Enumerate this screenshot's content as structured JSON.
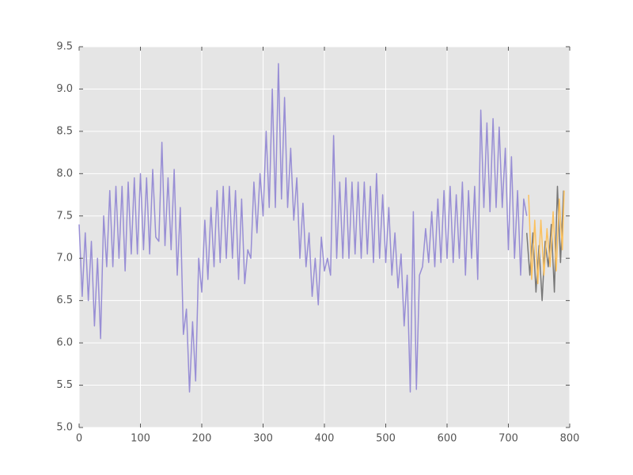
{
  "chart_data": {
    "type": "line",
    "xlim": [
      0,
      800
    ],
    "ylim": [
      5,
      9.5
    ],
    "xticks": [
      0,
      100,
      200,
      300,
      400,
      500,
      600,
      700,
      800
    ],
    "yticks": [
      {
        "value": 5,
        "label": "5.0"
      },
      {
        "value": 5.5,
        "label": "5.5"
      },
      {
        "value": 6,
        "label": "6.0"
      },
      {
        "value": 6.5,
        "label": "6.5"
      },
      {
        "value": 7,
        "label": "7.0"
      },
      {
        "value": 7.5,
        "label": "7.5"
      },
      {
        "value": 8,
        "label": "8.0"
      },
      {
        "value": 8.5,
        "label": "8.5"
      },
      {
        "value": 9,
        "label": "9.0"
      },
      {
        "value": 9.5,
        "label": "9.5"
      }
    ],
    "grid": true,
    "series": [
      {
        "color": "#988ED5",
        "x": [
          0,
          5,
          10,
          15,
          20,
          25,
          30,
          35,
          40,
          45,
          50,
          55,
          60,
          65,
          70,
          75,
          80,
          85,
          90,
          95,
          100,
          105,
          110,
          115,
          120,
          125,
          130,
          135,
          140,
          145,
          150,
          155,
          160,
          165,
          170,
          175,
          180,
          185,
          190,
          195,
          200,
          205,
          210,
          215,
          220,
          225,
          230,
          235,
          240,
          245,
          250,
          255,
          260,
          265,
          270,
          275,
          280,
          285,
          290,
          295,
          300,
          305,
          310,
          315,
          320,
          325,
          330,
          335,
          340,
          345,
          350,
          355,
          360,
          365,
          370,
          375,
          380,
          385,
          390,
          395,
          400,
          405,
          410,
          415,
          420,
          425,
          430,
          435,
          440,
          445,
          450,
          455,
          460,
          465,
          470,
          475,
          480,
          485,
          490,
          495,
          500,
          505,
          510,
          515,
          520,
          525,
          530,
          535,
          540,
          545,
          550,
          555,
          560,
          565,
          570,
          575,
          580,
          585,
          590,
          595,
          600,
          605,
          610,
          615,
          620,
          625,
          630,
          635,
          640,
          645,
          650,
          655,
          660,
          665,
          670,
          675,
          680,
          685,
          690,
          695,
          700,
          705,
          710,
          715,
          720,
          725,
          730
        ],
        "values": [
          7.4,
          6.55,
          7.3,
          6.5,
          7.2,
          6.2,
          7.0,
          6.05,
          7.5,
          6.9,
          7.8,
          6.9,
          7.85,
          7.0,
          7.85,
          6.85,
          7.9,
          7.05,
          7.95,
          7.05,
          8.0,
          7.1,
          7.95,
          7.05,
          8.05,
          7.25,
          7.2,
          8.37,
          7.15,
          7.95,
          7.1,
          8.05,
          6.8,
          7.6,
          6.1,
          6.4,
          5.42,
          6.25,
          5.55,
          7.0,
          6.6,
          7.45,
          6.75,
          7.6,
          6.9,
          7.8,
          6.95,
          7.85,
          7.0,
          7.85,
          7.0,
          7.8,
          6.75,
          7.7,
          6.7,
          7.1,
          7.0,
          7.9,
          7.3,
          8.0,
          7.5,
          8.5,
          7.6,
          9.0,
          7.6,
          9.3,
          7.7,
          8.9,
          7.6,
          8.3,
          7.45,
          7.95,
          7.0,
          7.65,
          6.9,
          7.3,
          6.55,
          7.0,
          6.45,
          7.25,
          6.85,
          7.0,
          6.8,
          8.45,
          7.0,
          7.9,
          7.0,
          7.95,
          7.0,
          7.9,
          7.05,
          7.9,
          7.0,
          7.9,
          7.05,
          7.85,
          6.95,
          8.0,
          7.0,
          7.75,
          6.95,
          7.6,
          6.8,
          7.3,
          6.65,
          7.05,
          6.2,
          6.8,
          5.42,
          7.55,
          5.45,
          6.8,
          6.9,
          7.35,
          6.95,
          7.55,
          6.9,
          7.7,
          6.95,
          7.8,
          7.0,
          7.85,
          6.95,
          7.75,
          7.0,
          7.9,
          6.8,
          7.8,
          7.0,
          7.85,
          6.75,
          8.75,
          7.6,
          8.6,
          7.55,
          8.65,
          7.6,
          8.55,
          7.6,
          8.3,
          7.1,
          8.2,
          7.0,
          7.8,
          6.8,
          7.7,
          7.5
        ]
      },
      {
        "color": "#777777",
        "x": [
          730,
          735,
          740,
          745,
          750,
          755,
          760,
          765,
          770,
          775,
          780,
          785,
          790
        ],
        "values": [
          7.3,
          6.8,
          7.3,
          6.6,
          7.15,
          6.5,
          7.2,
          6.9,
          7.4,
          6.6,
          7.85,
          6.95,
          7.8
        ]
      },
      {
        "color": "#FBC15E",
        "x": [
          733,
          738,
          743,
          748,
          753,
          758,
          763,
          768,
          773,
          778,
          783,
          788,
          791
        ],
        "values": [
          7.75,
          6.75,
          7.45,
          6.7,
          7.45,
          6.8,
          7.35,
          6.9,
          7.55,
          6.85,
          7.7,
          7.1,
          7.8
        ]
      }
    ]
  }
}
